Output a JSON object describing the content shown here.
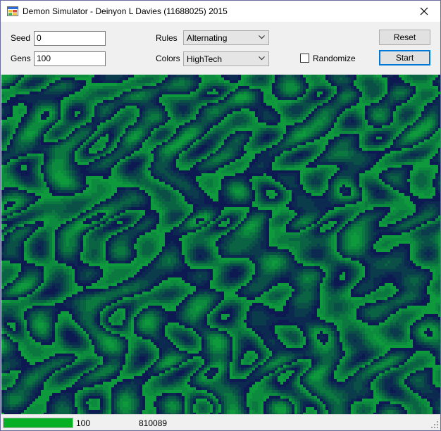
{
  "window": {
    "title": "Demon Simulator - Deinyon L Davies (11688025) 2015",
    "app_icon": "app-grid-icon",
    "close_icon": "close-icon"
  },
  "controls": {
    "seed_label": "Seed",
    "seed_value": "0",
    "gens_label": "Gens",
    "gens_value": "100",
    "rules_label": "Rules",
    "rules_selected": "Alternating",
    "colors_label": "Colors",
    "colors_selected": "HighTech",
    "randomize_label": "Randomize",
    "randomize_checked": false,
    "reset_label": "Reset",
    "start_label": "Start"
  },
  "simulation": {
    "palette": [
      "#0e9a3c",
      "#0c8a3e",
      "#0b7840",
      "#0a6443",
      "#0a5046",
      "#0b3c4b",
      "#0c2a50",
      "#0d1a52"
    ]
  },
  "status": {
    "progress_percent": 100,
    "generation": "100",
    "value": "810089"
  }
}
